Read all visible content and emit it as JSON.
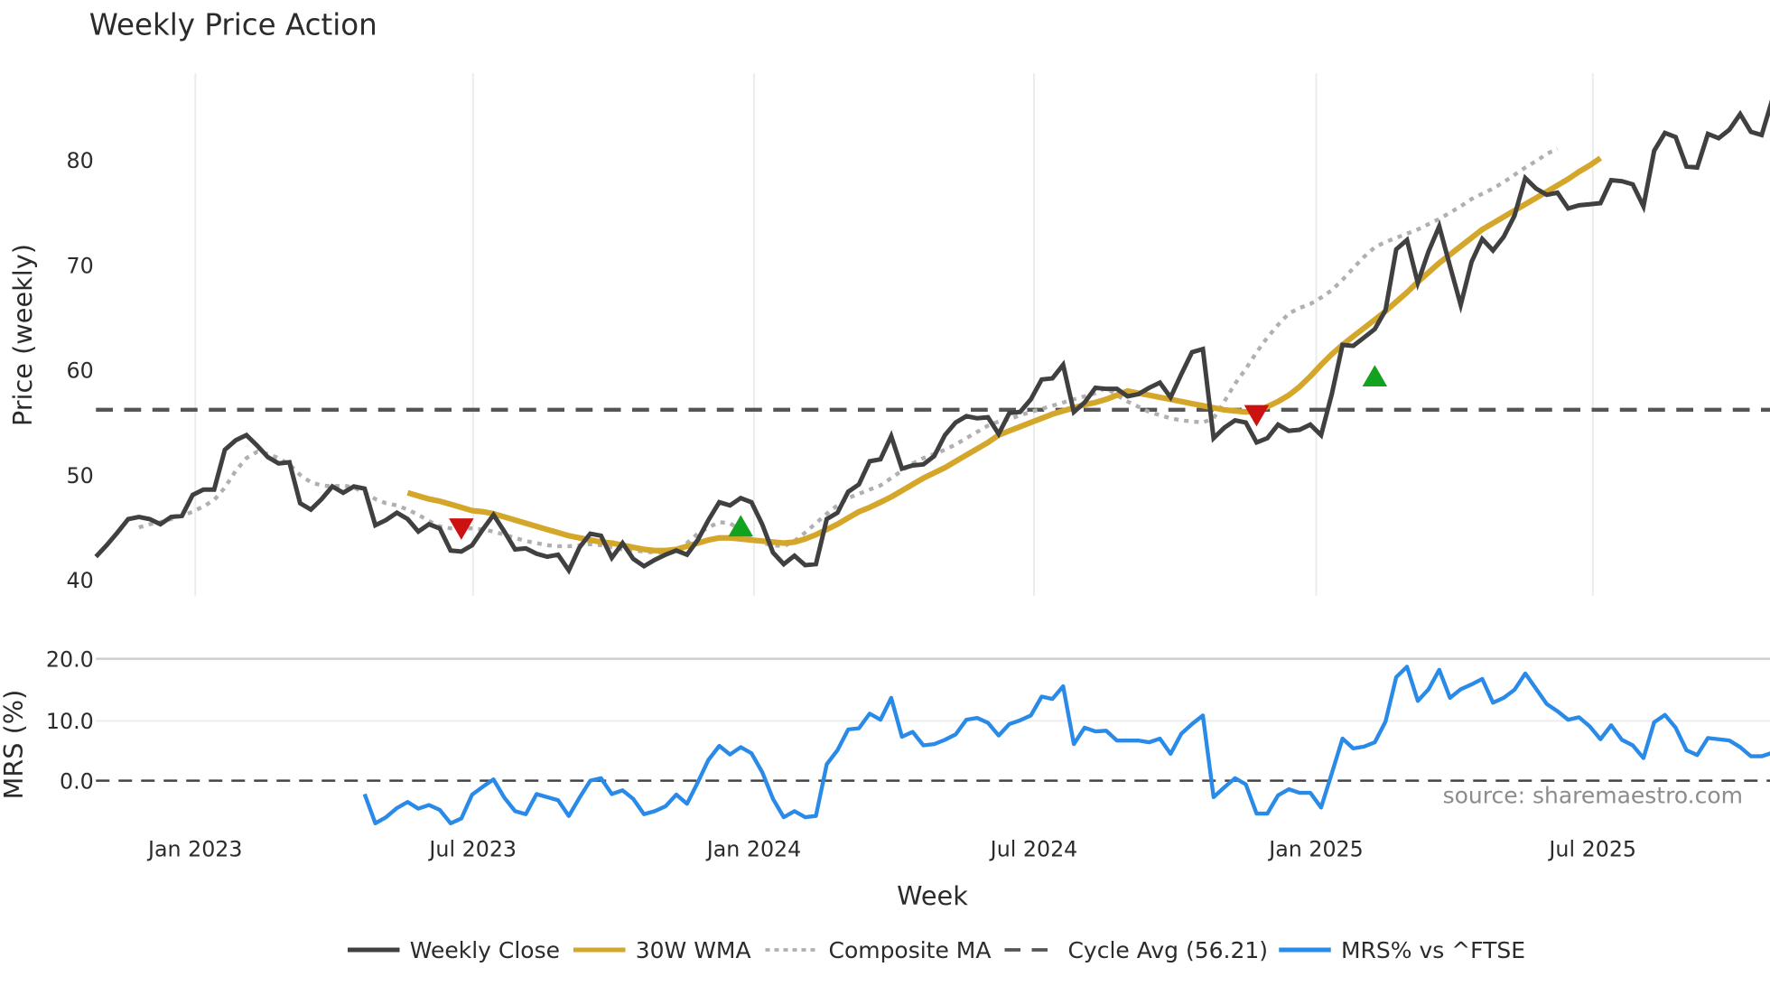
{
  "chart_data": [
    {
      "type": "line",
      "title": "Weekly Price Action",
      "xlabel": "Week",
      "ylabel": "Price (weekly)",
      "ylim": [
        38.5,
        87
      ],
      "yticks": [
        40,
        50,
        60,
        70,
        80
      ],
      "xticks": [
        "Jan 2023",
        "Jul 2023",
        "Jan 2024",
        "Jul 2024",
        "Jan 2025",
        "Jul 2025"
      ],
      "grid": "vertical",
      "legend_position": "bottom",
      "x_start": "2022-09 (weekly)",
      "series": [
        {
          "name": "Weekly Close",
          "color": "#404040",
          "style": "solid",
          "values": [
            42.2,
            43.3,
            44.5,
            45.8,
            46.0,
            45.8,
            45.3,
            46.0,
            46.1,
            48.1,
            48.6,
            48.6,
            52.4,
            53.3,
            53.8,
            52.8,
            51.7,
            51.1,
            51.2,
            47.3,
            46.7,
            47.7,
            48.9,
            48.3,
            48.9,
            48.7,
            45.2,
            45.7,
            46.4,
            45.8,
            44.6,
            45.3,
            44.9,
            42.8,
            42.7,
            43.3,
            44.8,
            46.2,
            44.6,
            42.9,
            43.0,
            42.5,
            42.2,
            42.4,
            40.9,
            43.1,
            44.4,
            44.2,
            42.1,
            43.5,
            42.0,
            41.3,
            41.9,
            42.4,
            42.8,
            42.4,
            43.8,
            45.7,
            47.4,
            47.1,
            47.8,
            47.4,
            45.3,
            42.6,
            41.5,
            42.3,
            41.4,
            41.5,
            45.8,
            46.4,
            48.4,
            49.1,
            51.3,
            51.5,
            53.7,
            50.6,
            50.9,
            51.0,
            51.8,
            53.8,
            55.0,
            55.6,
            55.4,
            55.5,
            53.9,
            55.9,
            56.0,
            57.2,
            59.1,
            59.2,
            60.5,
            56.0,
            56.9,
            58.3,
            58.2,
            58.2,
            57.5,
            57.7,
            58.3,
            58.8,
            57.4,
            59.6,
            61.7,
            62.0,
            53.5,
            54.5,
            55.2,
            55.0,
            53.1,
            53.5,
            54.8,
            54.2,
            54.3,
            54.8,
            53.8,
            57.7,
            62.4,
            62.3,
            63.1,
            63.9,
            65.7,
            71.5,
            72.4,
            68.3,
            71.3,
            73.7,
            69.9,
            66.2,
            70.3,
            72.5,
            71.4,
            72.7,
            74.7,
            78.3,
            77.3,
            76.7,
            76.9,
            75.4,
            75.7,
            75.8,
            75.9,
            78.1,
            78.0,
            77.7,
            75.6,
            80.9,
            82.6,
            82.2,
            79.4,
            79.3,
            82.5,
            82.1,
            82.9,
            84.4,
            82.7,
            82.4,
            85.8
          ]
        },
        {
          "name": "30W WMA",
          "color": "#d4a62a",
          "style": "solid",
          "start_index": 29,
          "values": [
            48.3,
            48.0,
            47.7,
            47.5,
            47.2,
            46.9,
            46.6,
            46.5,
            46.3,
            46.0,
            45.7,
            45.4,
            45.1,
            44.8,
            44.5,
            44.2,
            44.0,
            43.8,
            43.6,
            43.5,
            43.3,
            43.1,
            42.9,
            42.8,
            42.8,
            42.9,
            43.2,
            43.5,
            43.8,
            44.0,
            44.0,
            43.9,
            43.8,
            43.7,
            43.6,
            43.5,
            43.6,
            43.9,
            44.3,
            44.8,
            45.3,
            45.9,
            46.5,
            46.9,
            47.4,
            47.9,
            48.5,
            49.1,
            49.7,
            50.2,
            50.7,
            51.3,
            51.9,
            52.5,
            53.1,
            53.8,
            54.2,
            54.6,
            55.0,
            55.4,
            55.8,
            56.1,
            56.4,
            56.7,
            56.9,
            57.2,
            57.6,
            58.0,
            57.8,
            57.6,
            57.4,
            57.2,
            57.0,
            56.8,
            56.6,
            56.4,
            56.2,
            56.1,
            56.0,
            56.1,
            56.5,
            57.0,
            57.6,
            58.4,
            59.4,
            60.5,
            61.5,
            62.4,
            63.2,
            64.0,
            64.8,
            65.6,
            66.5,
            67.4,
            68.4,
            69.3,
            70.2,
            71.0,
            71.8,
            72.6,
            73.4,
            74.0,
            74.6,
            75.2,
            75.8,
            76.4,
            77.0,
            77.6,
            78.2,
            78.9,
            79.5,
            80.2
          ]
        },
        {
          "name": "Composite MA",
          "color": "#b0b0b0",
          "style": "dotted",
          "start_index": 4,
          "values": [
            45.0,
            45.3,
            45.5,
            45.8,
            46.1,
            46.5,
            47.0,
            47.6,
            48.8,
            50.4,
            51.6,
            52.2,
            52.0,
            51.6,
            51.0,
            50.0,
            49.3,
            49.0,
            48.9,
            49.0,
            48.8,
            48.3,
            47.7,
            47.3,
            47.1,
            46.7,
            46.2,
            45.6,
            45.1,
            44.9,
            44.9,
            44.9,
            44.8,
            44.6,
            44.3,
            44.0,
            43.7,
            43.5,
            43.3,
            43.2,
            43.2,
            43.3,
            43.4,
            43.3,
            43.1,
            42.9,
            42.8,
            42.7,
            42.6,
            42.6,
            42.8,
            43.5,
            44.4,
            45.0,
            45.5,
            45.4,
            44.7,
            44.0,
            43.5,
            43.3,
            43.2,
            43.7,
            44.5,
            45.4,
            46.3,
            47.1,
            47.8,
            48.2,
            48.6,
            49.0,
            49.7,
            50.4,
            51.1,
            51.6,
            52.0,
            52.4,
            52.9,
            53.5,
            54.1,
            54.7,
            55.1,
            55.3,
            55.7,
            56.0,
            56.3,
            56.6,
            56.9,
            57.2,
            57.5,
            57.8,
            58.3,
            57.6,
            57.0,
            56.5,
            56.0,
            55.7,
            55.4,
            55.2,
            55.1,
            55.0,
            55.4,
            57.0,
            58.7,
            60.1,
            61.7,
            63.1,
            64.3,
            65.4,
            65.9,
            66.3,
            66.9,
            67.6,
            68.6,
            69.7,
            70.8,
            71.7,
            72.2,
            72.6,
            73.0,
            73.4,
            73.9,
            74.4,
            75.0,
            75.6,
            76.3,
            76.8,
            77.3,
            77.9,
            78.6,
            79.3,
            79.9,
            80.6,
            81.1
          ]
        },
        {
          "name": "Cycle Avg (56.21)",
          "color": "#555555",
          "style": "dashed",
          "value": 56.21
        }
      ],
      "markers": [
        {
          "type": "sell",
          "shape": "triangle-down",
          "color": "#cc1111",
          "index": 34,
          "value": 45.0
        },
        {
          "type": "buy",
          "shape": "triangle-up",
          "color": "#11a21f",
          "index": 60,
          "value": 45.0
        },
        {
          "type": "sell",
          "shape": "triangle-down",
          "color": "#cc1111",
          "index": 108,
          "value": 55.8
        },
        {
          "type": "buy",
          "shape": "triangle-up",
          "color": "#11a21f",
          "index": 119,
          "value": 59.3
        }
      ]
    },
    {
      "type": "line",
      "ylabel": "MRS (%)",
      "ylim": [
        -9,
        22
      ],
      "yticks": [
        "20.0",
        "10.0",
        "0.0"
      ],
      "zero_line": "dashed",
      "series": [
        {
          "name": "MRS% vs ^FTSE",
          "color": "#2a8ae8",
          "start_index": 25,
          "values": [
            -2.2,
            -7.0,
            -6.0,
            -4.5,
            -3.5,
            -4.6,
            -4.0,
            -4.8,
            -7.0,
            -6.2,
            -2.3,
            -1.0,
            0.2,
            -2.8,
            -5.0,
            -5.5,
            -2.2,
            -2.7,
            -3.2,
            -5.8,
            -2.8,
            0.0,
            0.4,
            -2.2,
            -1.6,
            -3.0,
            -5.5,
            -5.0,
            -4.2,
            -2.3,
            -3.8,
            -0.3,
            3.4,
            5.7,
            4.3,
            5.5,
            4.5,
            1.4,
            -3.0,
            -6.0,
            -5.0,
            -6.0,
            -5.8,
            2.7,
            5.0,
            8.4,
            8.6,
            11.0,
            10.0,
            13.6,
            7.2,
            8.0,
            5.8,
            6.0,
            6.7,
            7.6,
            10.0,
            10.3,
            9.5,
            7.4,
            9.3,
            9.9,
            10.7,
            13.8,
            13.4,
            15.5,
            6.0,
            8.7,
            8.1,
            8.2,
            6.6,
            6.6,
            6.6,
            6.3,
            6.9,
            4.4,
            7.7,
            9.3,
            10.7,
            -2.7,
            -1.1,
            0.4,
            -0.6,
            -5.4,
            -5.4,
            -2.4,
            -1.4,
            -2.0,
            -2.0,
            -4.4,
            1.2,
            6.9,
            5.3,
            5.6,
            6.3,
            9.7,
            17.0,
            18.7,
            13.1,
            15.0,
            18.2,
            13.6,
            15.0,
            15.8,
            16.7,
            12.8,
            13.6,
            14.9,
            17.6,
            15.1,
            12.6,
            11.4,
            10.0,
            10.4,
            8.9,
            6.8,
            9.1,
            6.7,
            5.8,
            3.7,
            9.6,
            10.8,
            8.7,
            5.0,
            4.2,
            7.0,
            6.8,
            6.6,
            5.5,
            4.0,
            4.0,
            4.6
          ]
        }
      ]
    }
  ],
  "header": {
    "title": "Weekly Price Action"
  },
  "price_panel": {
    "ylabel": "Price (weekly)",
    "yticks": [
      "80",
      "70",
      "60",
      "50",
      "40"
    ]
  },
  "mrs_panel": {
    "ylabel": "MRS (%)",
    "yticks": [
      "20.0",
      "10.0",
      "0.0"
    ],
    "source": "source: sharemaestro.com"
  },
  "xaxis": {
    "title": "Week",
    "ticks": [
      "Jan 2023",
      "Jul 2023",
      "Jan 2024",
      "Jul 2024",
      "Jan 2025",
      "Jul 2025"
    ]
  },
  "legend": {
    "items": [
      {
        "label": "Weekly Close",
        "color": "#404040",
        "style": "solid"
      },
      {
        "label": "30W WMA",
        "color": "#d4a62a",
        "style": "solid"
      },
      {
        "label": "Composite MA",
        "color": "#b0b0b0",
        "style": "dotted"
      },
      {
        "label": "Cycle Avg (56.21)",
        "color": "#555555",
        "style": "dashed"
      },
      {
        "label": "MRS% vs ^FTSE",
        "color": "#2a8ae8",
        "style": "solid"
      }
    ]
  }
}
